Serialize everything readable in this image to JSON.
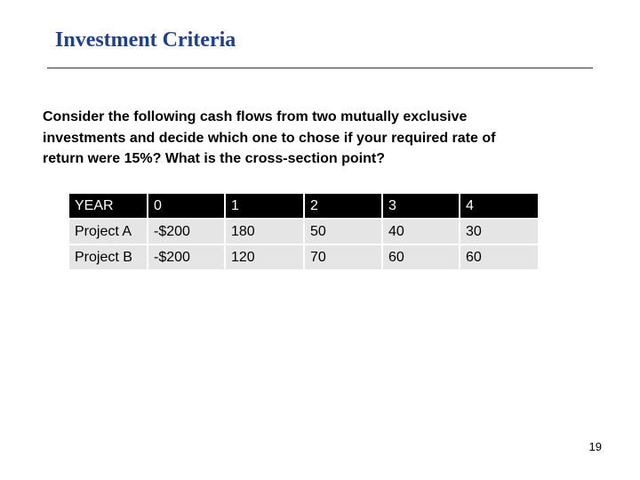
{
  "header": {
    "title": "Investment Criteria"
  },
  "body": {
    "lines": [
      "Consider the following cash flows from two mutually exclusive",
      "investments and decide which one to chose if your required rate of",
      "return were 15%? What is the cross-section point?"
    ]
  },
  "table": {
    "header": [
      "YEAR",
      "0",
      "1",
      "2",
      "3",
      "4"
    ],
    "rows": [
      [
        "Project A",
        "-$200",
        "180",
        "50",
        "40",
        "30"
      ],
      [
        "Project B",
        "-$200",
        "120",
        "70",
        "60",
        "60"
      ]
    ]
  },
  "footer": {
    "page_number": "19"
  }
}
